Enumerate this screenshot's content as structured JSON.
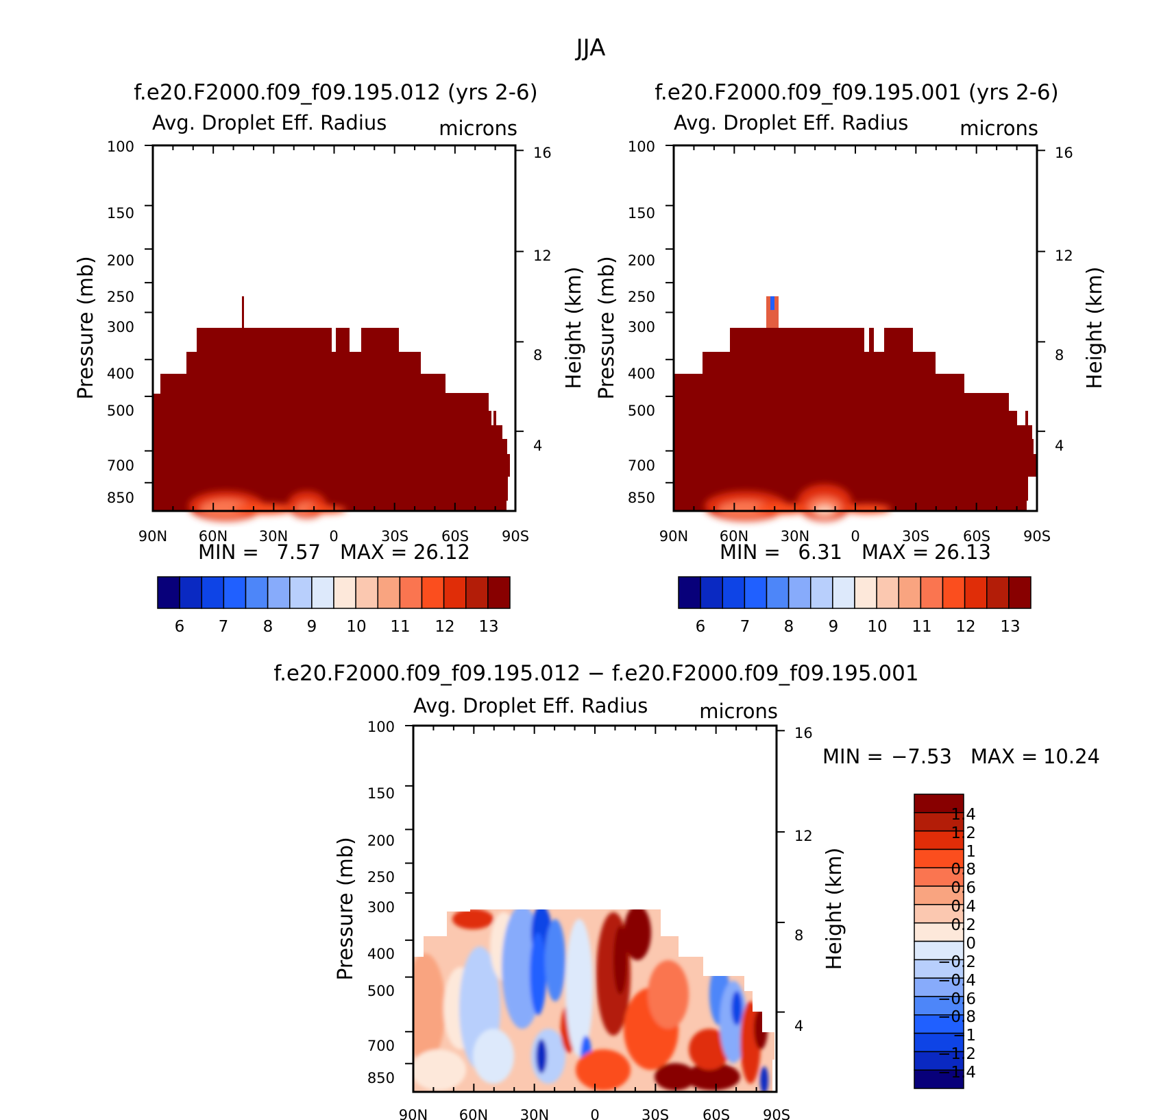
{
  "page": {
    "title": "JJA"
  },
  "chart_data": [
    {
      "id": "panel1",
      "type": "heatmap",
      "title": "f.e20.F2000.f09_f09.195.012 (yrs 2-6)",
      "variable": "Avg. Droplet Eff. Radius",
      "units": "microns",
      "ylabel": "Pressure (mb)",
      "y2label": "Height (km)",
      "x_ticks": [
        "90N",
        "60N",
        "30N",
        "0",
        "30S",
        "60S",
        "90S"
      ],
      "y_ticks": [
        "100",
        "150",
        "200",
        "250",
        "300",
        "400",
        "500",
        "700",
        "850"
      ],
      "y2_ticks": [
        "16",
        "12",
        "8",
        "4"
      ],
      "stats": {
        "min_label": "MIN =",
        "min": "7.57",
        "max_label": "MAX =",
        "max": "26.12"
      },
      "colorbar": {
        "colors": [
          "#08007a",
          "#0a29c2",
          "#0e44e6",
          "#2060ff",
          "#4d86f9",
          "#87abfb",
          "#b8cffc",
          "#dde9fb",
          "#fde8da",
          "#fbc8b0",
          "#f9a480",
          "#fa7550",
          "#fb4e1e",
          "#e02d08",
          "#b31d08",
          "#880000"
        ],
        "tick_labels": [
          "6",
          "7",
          "8",
          "9",
          "10",
          "11",
          "12",
          "13"
        ]
      }
    },
    {
      "id": "panel2",
      "type": "heatmap",
      "title": "f.e20.F2000.f09_f09.195.001 (yrs 2-6)",
      "variable": "Avg. Droplet Eff. Radius",
      "units": "microns",
      "ylabel": "Pressure (mb)",
      "y2label": "Height (km)",
      "x_ticks": [
        "90N",
        "60N",
        "30N",
        "0",
        "30S",
        "60S",
        "90S"
      ],
      "y_ticks": [
        "100",
        "150",
        "200",
        "250",
        "300",
        "400",
        "500",
        "700",
        "850"
      ],
      "y2_ticks": [
        "16",
        "12",
        "8",
        "4"
      ],
      "stats": {
        "min_label": "MIN =",
        "min": "6.31",
        "max_label": "MAX =",
        "max": "26.13"
      },
      "colorbar": {
        "colors": [
          "#08007a",
          "#0a29c2",
          "#0e44e6",
          "#2060ff",
          "#4d86f9",
          "#87abfb",
          "#b8cffc",
          "#dde9fb",
          "#fde8da",
          "#fbc8b0",
          "#f9a480",
          "#fa7550",
          "#fb4e1e",
          "#e02d08",
          "#b31d08",
          "#880000"
        ],
        "tick_labels": [
          "6",
          "7",
          "8",
          "9",
          "10",
          "11",
          "12",
          "13"
        ]
      }
    },
    {
      "id": "panel3",
      "type": "heatmap",
      "title": "f.e20.F2000.f09_f09.195.012 − f.e20.F2000.f09_f09.195.001",
      "variable": "Avg. Droplet Eff. Radius",
      "units": "microns",
      "ylabel": "Pressure (mb)",
      "y2label": "Height (km)",
      "x_ticks": [
        "90N",
        "60N",
        "30N",
        "0",
        "30S",
        "60S",
        "90S"
      ],
      "y_ticks": [
        "100",
        "150",
        "200",
        "250",
        "300",
        "400",
        "500",
        "700",
        "850"
      ],
      "y2_ticks": [
        "16",
        "12",
        "8",
        "4"
      ],
      "stats": {
        "min_label": "MIN =",
        "min": "−7.53",
        "max_label": "MAX =",
        "max": "10.24"
      },
      "colorbar": {
        "colors": [
          "#880000",
          "#b31d08",
          "#e02d08",
          "#fb4e1e",
          "#fa7550",
          "#f9a480",
          "#fbc8b0",
          "#fde8da",
          "#dde9fb",
          "#b8cffc",
          "#87abfb",
          "#4d86f9",
          "#2060ff",
          "#0e44e6",
          "#0a29c2",
          "#08007a"
        ],
        "tick_labels": [
          "1.4",
          "1.2",
          "1",
          "0.8",
          "0.6",
          "0.4",
          "0.2",
          "0",
          "−0.2",
          "−0.4",
          "−0.6",
          "−0.8",
          "−1",
          "−1.2",
          "−1.4"
        ]
      }
    }
  ]
}
